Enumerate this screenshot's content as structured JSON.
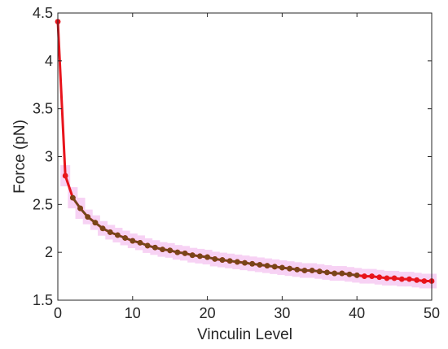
{
  "chart_data": {
    "type": "line",
    "xlabel": "Vinculin Level",
    "ylabel": "Force (pN)",
    "xlim": [
      0,
      50
    ],
    "ylim": [
      1.5,
      4.5
    ],
    "xticks": [
      0,
      10,
      20,
      30,
      40,
      50
    ],
    "xtick_labels": [
      "0",
      "10",
      "20",
      "30",
      "40",
      "50"
    ],
    "yticks": [
      1.5,
      2,
      2.5,
      3,
      3.5,
      4,
      4.5
    ],
    "ytick_labels": [
      "1.5",
      "2",
      "2.5",
      "3",
      "3.5",
      "4",
      "4.5"
    ],
    "grid": false,
    "series": [
      {
        "color": "#e8141c",
        "marker_color": "#e8141c",
        "x": [
          0,
          1,
          2,
          3,
          4,
          5,
          6,
          7,
          8,
          9,
          10,
          11,
          12,
          13,
          14,
          15,
          16,
          17,
          18,
          19,
          20,
          21,
          22,
          23,
          24,
          25,
          26,
          27,
          28,
          29,
          30,
          31,
          32,
          33,
          34,
          35,
          36,
          37,
          38,
          39,
          40,
          41,
          42,
          43,
          44,
          45,
          46,
          47,
          48,
          49,
          50
        ],
        "y": [
          4.41,
          2.8,
          2.57,
          2.46,
          2.37,
          2.31,
          2.25,
          2.21,
          2.18,
          2.15,
          2.12,
          2.1,
          2.07,
          2.05,
          2.03,
          2.02,
          2.0,
          1.99,
          1.97,
          1.96,
          1.95,
          1.93,
          1.92,
          1.91,
          1.9,
          1.89,
          1.88,
          1.87,
          1.86,
          1.85,
          1.84,
          1.83,
          1.82,
          1.81,
          1.81,
          1.8,
          1.79,
          1.78,
          1.78,
          1.77,
          1.76,
          1.75,
          1.75,
          1.74,
          1.73,
          1.73,
          1.72,
          1.72,
          1.71,
          1.7,
          1.7
        ]
      },
      {
        "color": "#6b4a1e",
        "marker_color": "#7a4418",
        "x": [
          2,
          3,
          4,
          5,
          6,
          7,
          8,
          9,
          10,
          11,
          12,
          13,
          14,
          15,
          16,
          17,
          18,
          19,
          20,
          21,
          22,
          23,
          24,
          25,
          26,
          27,
          28,
          29,
          30,
          31,
          32,
          33,
          34,
          35,
          36,
          37,
          38,
          39,
          40
        ],
        "y": [
          2.57,
          2.46,
          2.37,
          2.31,
          2.25,
          2.21,
          2.18,
          2.15,
          2.12,
          2.1,
          2.07,
          2.05,
          2.03,
          2.02,
          2.0,
          1.99,
          1.97,
          1.96,
          1.95,
          1.93,
          1.92,
          1.91,
          1.9,
          1.89,
          1.88,
          1.87,
          1.86,
          1.85,
          1.84,
          1.83,
          1.82,
          1.81,
          1.81,
          1.8,
          1.79,
          1.78,
          1.78,
          1.77,
          1.76
        ]
      }
    ],
    "band_color": "#f7d2f4"
  }
}
